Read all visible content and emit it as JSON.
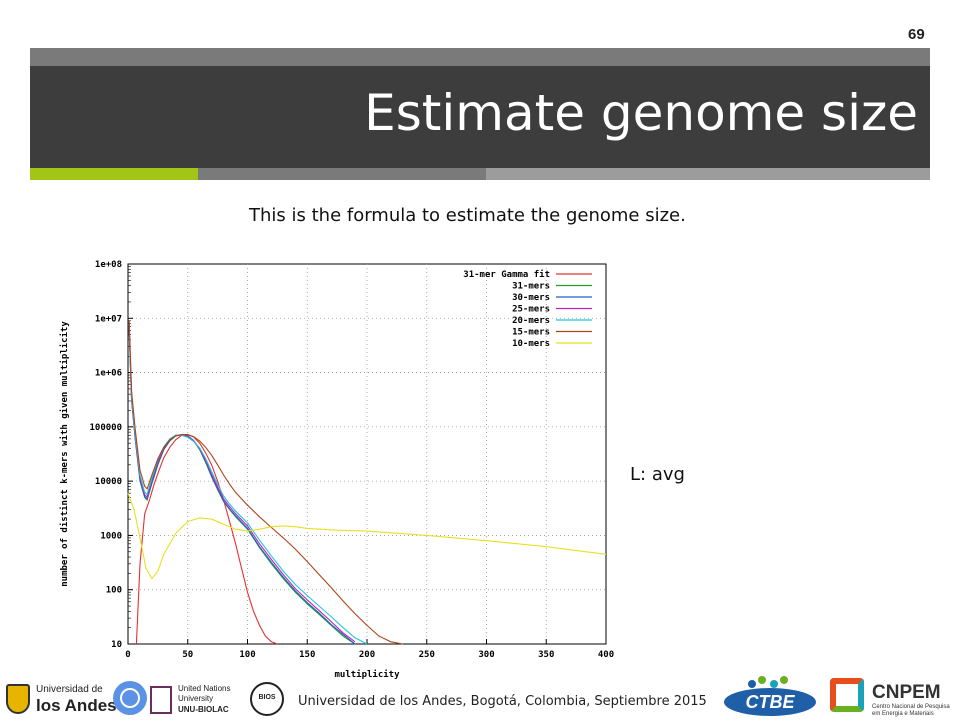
{
  "slide": {
    "number": "69",
    "title": "Estimate genome size",
    "caption": "This is the formula to estimate the genome size.",
    "side_label": "L: avg",
    "footer": "Universidad de los Andes, Bogotá, Colombia, Septiembre 2015",
    "colors": {
      "title_bar": "#3d3d3d",
      "accent_green": "#a2c516",
      "accent_gray": "#7a7a7a"
    }
  },
  "logos": {
    "uniandes": {
      "line1": "Universidad de",
      "line2": "los Andes"
    },
    "unu": {
      "line1": "United Nations",
      "line2": "University",
      "line3": "UNU-BIOLAC"
    },
    "bios": "BIOS",
    "ctbe": "CTBE",
    "cnpem": {
      "name": "CNPEM",
      "subtitle": "Centro Nacional de Pesquisa em Energia e Materiais"
    }
  },
  "chart_data": {
    "type": "line",
    "xlabel": "multiplicity",
    "ylabel": "number of distinct k-mers with given multiplicity",
    "xlim": [
      0,
      400
    ],
    "ylim": [
      10,
      100000000
    ],
    "yscale": "log",
    "xticks": [
      "0",
      "50",
      "100",
      "150",
      "200",
      "250",
      "300",
      "350",
      "400"
    ],
    "yticks": [
      "10",
      "100",
      "1000",
      "10000",
      "100000",
      "1e+06",
      "1e+07",
      "1e+08"
    ],
    "legend_position": "top-right",
    "series": [
      {
        "name": "31-mer Gamma fit",
        "color": "#e53030",
        "x": [
          7,
          10,
          14,
          18,
          22,
          26,
          30,
          35,
          40,
          45,
          50,
          55,
          60,
          65,
          70,
          75,
          80,
          85,
          90,
          95,
          100,
          105,
          110,
          115,
          120,
          125
        ],
        "y": [
          10,
          300,
          2500,
          4500,
          9000,
          16000,
          27000,
          42000,
          58000,
          70000,
          72000,
          65000,
          50000,
          33000,
          20000,
          10000,
          4500,
          1800,
          700,
          250,
          90,
          40,
          22,
          14,
          11,
          10
        ]
      },
      {
        "name": "31-mers",
        "color": "#22a022",
        "x": [
          1,
          3,
          6,
          10,
          14,
          16,
          20,
          25,
          30,
          35,
          40,
          45,
          50,
          55,
          60,
          65,
          70,
          75,
          80,
          85,
          90,
          100,
          110,
          120,
          130,
          140,
          150,
          160,
          170,
          180,
          190
        ],
        "y": [
          6000000,
          300000,
          60000,
          10000,
          5000,
          4500,
          9000,
          20000,
          38000,
          55000,
          68000,
          72000,
          68000,
          55000,
          38000,
          22000,
          12000,
          7000,
          4200,
          3000,
          2200,
          1300,
          600,
          300,
          160,
          90,
          55,
          35,
          22,
          14,
          10
        ]
      },
      {
        "name": "30-mers",
        "color": "#2060d0",
        "x": [
          1,
          3,
          6,
          10,
          14,
          16,
          20,
          25,
          30,
          35,
          40,
          45,
          50,
          55,
          60,
          65,
          70,
          75,
          80,
          85,
          90,
          100,
          110,
          120,
          130,
          140,
          150,
          160,
          170,
          180,
          190
        ],
        "y": [
          6200000,
          310000,
          62000,
          10500,
          5200,
          4700,
          9500,
          21000,
          39000,
          56000,
          69000,
          72000,
          68000,
          56000,
          39000,
          23000,
          12500,
          7200,
          4300,
          3100,
          2300,
          1350,
          620,
          320,
          170,
          95,
          58,
          37,
          23,
          15,
          10
        ]
      },
      {
        "name": "25-mers",
        "color": "#c020c0",
        "x": [
          1,
          3,
          6,
          10,
          14,
          16,
          20,
          25,
          30,
          35,
          40,
          45,
          50,
          55,
          60,
          65,
          70,
          75,
          80,
          85,
          90,
          100,
          110,
          120,
          130,
          140,
          150,
          160,
          170,
          180,
          190
        ],
        "y": [
          6800000,
          330000,
          66000,
          11500,
          5600,
          5100,
          10500,
          23000,
          41000,
          58000,
          70000,
          71000,
          66000,
          55000,
          40000,
          24000,
          13500,
          7800,
          4700,
          3400,
          2500,
          1500,
          700,
          360,
          190,
          105,
          65,
          41,
          26,
          16,
          11
        ]
      },
      {
        "name": "20-mers",
        "color": "#20c8d8",
        "x": [
          1,
          3,
          6,
          10,
          14,
          16,
          20,
          25,
          30,
          35,
          40,
          45,
          50,
          55,
          60,
          65,
          70,
          75,
          80,
          85,
          90,
          100,
          110,
          120,
          130,
          140,
          150,
          160,
          170,
          180,
          190,
          200
        ],
        "y": [
          7500000,
          360000,
          72000,
          13000,
          6200,
          5700,
          11500,
          25000,
          43000,
          60000,
          71000,
          70000,
          64000,
          54000,
          41000,
          26000,
          15000,
          8800,
          5300,
          3800,
          2800,
          1700,
          820,
          420,
          220,
          125,
          78,
          50,
          32,
          20,
          13,
          10
        ]
      },
      {
        "name": "15-mers",
        "color": "#b04418",
        "x": [
          1,
          3,
          6,
          10,
          14,
          16,
          20,
          25,
          30,
          35,
          40,
          45,
          50,
          55,
          60,
          65,
          70,
          75,
          80,
          85,
          90,
          100,
          110,
          120,
          130,
          140,
          150,
          160,
          170,
          180,
          190,
          200,
          210,
          220,
          230
        ],
        "y": [
          9000000,
          450000,
          90000,
          16000,
          8000,
          7200,
          13000,
          26000,
          42000,
          58000,
          68000,
          72000,
          72000,
          66000,
          55000,
          42000,
          30000,
          20000,
          13000,
          8800,
          6200,
          3600,
          2200,
          1400,
          900,
          560,
          330,
          190,
          110,
          62,
          36,
          22,
          14,
          11,
          10
        ]
      },
      {
        "name": "10-mers",
        "color": "#e8e020",
        "x": [
          0,
          5,
          10,
          15,
          20,
          25,
          30,
          40,
          50,
          60,
          70,
          80,
          90,
          100,
          110,
          120,
          130,
          140,
          150,
          175,
          200,
          250,
          300,
          350,
          400
        ],
        "y": [
          6000,
          3000,
          900,
          250,
          160,
          220,
          450,
          1100,
          1800,
          2100,
          2000,
          1600,
          1300,
          1200,
          1300,
          1450,
          1500,
          1450,
          1350,
          1250,
          1200,
          1000,
          800,
          620,
          450
        ]
      }
    ]
  }
}
